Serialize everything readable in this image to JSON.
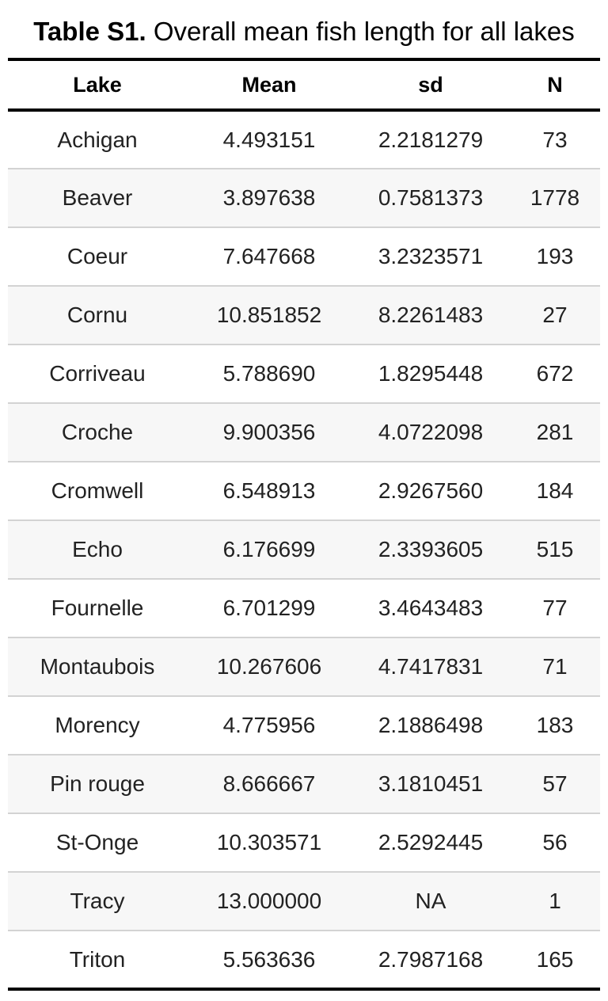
{
  "caption": {
    "label": "Table S1.",
    "text": "Overall mean fish length for all lakes"
  },
  "table": {
    "headers": [
      "Lake",
      "Mean",
      "sd",
      "N"
    ],
    "rows": [
      [
        "Achigan",
        "4.493151",
        "2.2181279",
        "73"
      ],
      [
        "Beaver",
        "3.897638",
        "0.7581373",
        "1778"
      ],
      [
        "Coeur",
        "7.647668",
        "3.2323571",
        "193"
      ],
      [
        "Cornu",
        "10.851852",
        "8.2261483",
        "27"
      ],
      [
        "Corriveau",
        "5.788690",
        "1.8295448",
        "672"
      ],
      [
        "Croche",
        "9.900356",
        "4.0722098",
        "281"
      ],
      [
        "Cromwell",
        "6.548913",
        "2.9267560",
        "184"
      ],
      [
        "Echo",
        "6.176699",
        "2.3393605",
        "515"
      ],
      [
        "Fournelle",
        "6.701299",
        "3.4643483",
        "77"
      ],
      [
        "Montaubois",
        "10.267606",
        "4.7417831",
        "71"
      ],
      [
        "Morency",
        "4.775956",
        "2.1886498",
        "183"
      ],
      [
        "Pin rouge",
        "8.666667",
        "3.1810451",
        "57"
      ],
      [
        "St-Onge",
        "10.303571",
        "2.5292445",
        "56"
      ],
      [
        "Tracy",
        "13.000000",
        "NA",
        "1"
      ],
      [
        "Triton",
        "5.563636",
        "2.7987168",
        "165"
      ]
    ]
  }
}
